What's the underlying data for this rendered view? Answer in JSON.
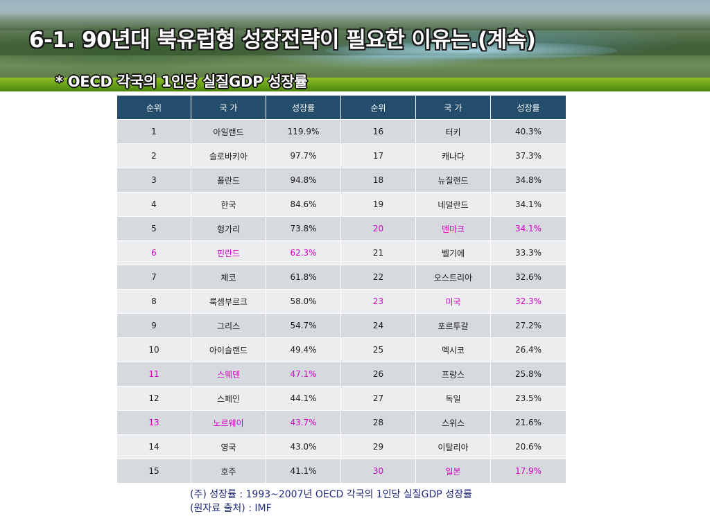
{
  "slide": {
    "title": "6-1. 90년대 북유럽형 성장전략이 필요한 이유는.(계속)",
    "subtitle": "* OECD 각국의 1인당 실질GDP 성장률"
  },
  "table": {
    "headers": [
      "순위",
      "국 가",
      "성장률",
      "순위",
      "국 가",
      "성장률"
    ],
    "highlight_color": "#d400c8",
    "rows": [
      {
        "left": {
          "rank": "1",
          "country": "아일랜드",
          "rate": "119.9%",
          "highlight": false
        },
        "right": {
          "rank": "16",
          "country": "터키",
          "rate": "40.3%",
          "highlight": false
        }
      },
      {
        "left": {
          "rank": "2",
          "country": "슬로바키아",
          "rate": "97.7%",
          "highlight": false
        },
        "right": {
          "rank": "17",
          "country": "캐나다",
          "rate": "37.3%",
          "highlight": false
        }
      },
      {
        "left": {
          "rank": "3",
          "country": "폴란드",
          "rate": "94.8%",
          "highlight": false
        },
        "right": {
          "rank": "18",
          "country": "뉴질랜드",
          "rate": "34.8%",
          "highlight": false
        }
      },
      {
        "left": {
          "rank": "4",
          "country": "한국",
          "rate": "84.6%",
          "highlight": false
        },
        "right": {
          "rank": "19",
          "country": "네덜란드",
          "rate": "34.1%",
          "highlight": false
        }
      },
      {
        "left": {
          "rank": "5",
          "country": "헝가리",
          "rate": "73.8%",
          "highlight": false
        },
        "right": {
          "rank": "20",
          "country": "덴마크",
          "rate": "34.1%",
          "highlight": true
        }
      },
      {
        "left": {
          "rank": "6",
          "country": "핀란드",
          "rate": "62.3%",
          "highlight": true
        },
        "right": {
          "rank": "21",
          "country": "벨기에",
          "rate": "33.3%",
          "highlight": false
        }
      },
      {
        "left": {
          "rank": "7",
          "country": "체코",
          "rate": "61.8%",
          "highlight": false
        },
        "right": {
          "rank": "22",
          "country": "오스트리아",
          "rate": "32.6%",
          "highlight": false
        }
      },
      {
        "left": {
          "rank": "8",
          "country": "룩셈부르크",
          "rate": "58.0%",
          "highlight": false
        },
        "right": {
          "rank": "23",
          "country": "미국",
          "rate": "32.3%",
          "highlight": true
        }
      },
      {
        "left": {
          "rank": "9",
          "country": "그리스",
          "rate": "54.7%",
          "highlight": false
        },
        "right": {
          "rank": "24",
          "country": "포르투갈",
          "rate": "27.2%",
          "highlight": false
        }
      },
      {
        "left": {
          "rank": "10",
          "country": "아이슬랜드",
          "rate": "49.4%",
          "highlight": false
        },
        "right": {
          "rank": "25",
          "country": "멕시코",
          "rate": "26.4%",
          "highlight": false
        }
      },
      {
        "left": {
          "rank": "11",
          "country": "스웨덴",
          "rate": "47.1%",
          "highlight": true
        },
        "right": {
          "rank": "26",
          "country": "프랑스",
          "rate": "25.8%",
          "highlight": false
        }
      },
      {
        "left": {
          "rank": "12",
          "country": "스페인",
          "rate": "44.1%",
          "highlight": false
        },
        "right": {
          "rank": "27",
          "country": "독일",
          "rate": "23.5%",
          "highlight": false
        }
      },
      {
        "left": {
          "rank": "13",
          "country": "노르웨이",
          "rate": "43.7%",
          "highlight": true
        },
        "right": {
          "rank": "28",
          "country": "스위스",
          "rate": "21.6%",
          "highlight": false
        }
      },
      {
        "left": {
          "rank": "14",
          "country": "영국",
          "rate": "43.0%",
          "highlight": false
        },
        "right": {
          "rank": "29",
          "country": "이탈리아",
          "rate": "20.6%",
          "highlight": false
        }
      },
      {
        "left": {
          "rank": "15",
          "country": "호주",
          "rate": "41.1%",
          "highlight": false
        },
        "right": {
          "rank": "30",
          "country": "일본",
          "rate": "17.9%",
          "highlight": true
        }
      }
    ]
  },
  "notes": {
    "line1": "(주) 성장률 : 1993~2007년 OECD 각국의 1인당 실질GDP 성장률",
    "line2": "(원자료 출처) : IMF"
  }
}
